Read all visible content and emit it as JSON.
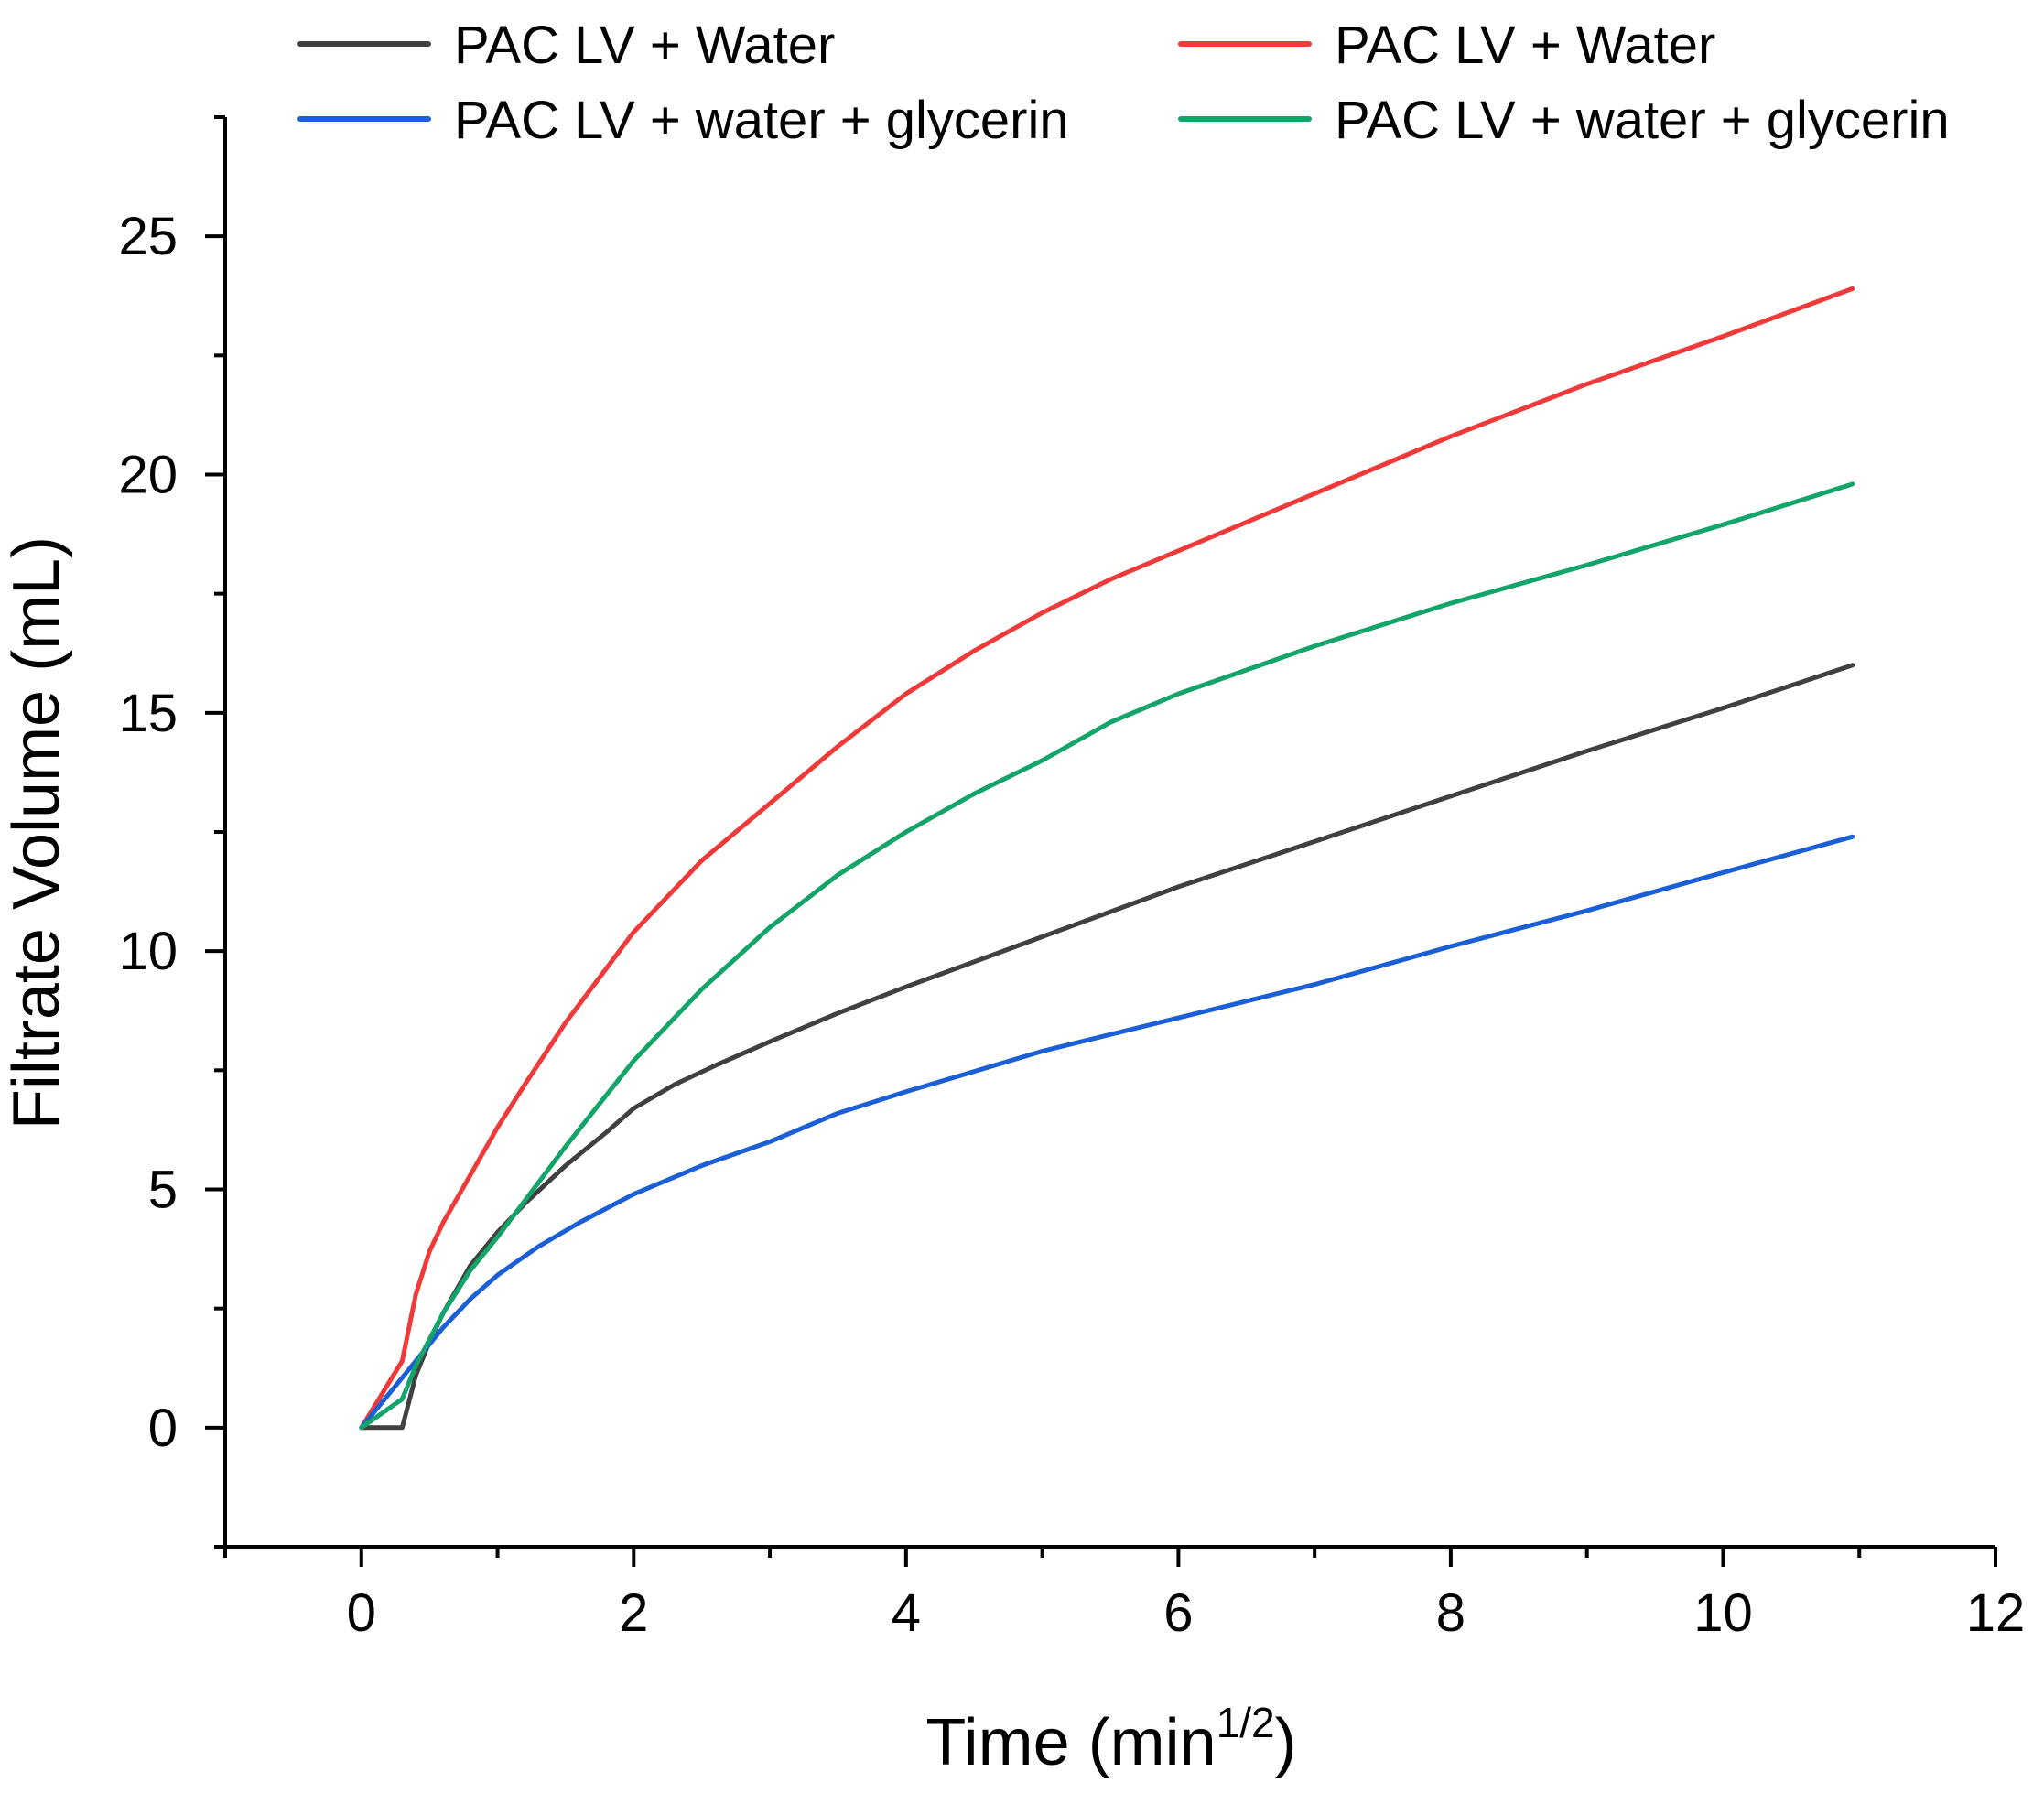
{
  "chart_data": {
    "type": "line",
    "title": "",
    "xlabel": "Time (min",
    "xlabel_sup": "1/2",
    "xlabel_close": ")",
    "ylabel": "Filtrate Volume (mL)",
    "xlim": [
      -1,
      12
    ],
    "ylim": [
      -2.5,
      27.5
    ],
    "xticks": [
      0,
      2,
      4,
      6,
      8,
      10,
      12
    ],
    "yticks": [
      0,
      5,
      10,
      15,
      20,
      25
    ],
    "x_minor_step": 1,
    "y_minor_step": 2.5,
    "grid": false,
    "legend_position": "top",
    "series": [
      {
        "name": "PAC LV + Water",
        "color": "#404040",
        "x": [
          0,
          0.3,
          0.4,
          0.5,
          0.6,
          0.7,
          0.8,
          1.0,
          1.2,
          1.5,
          1.8,
          2.0,
          2.3,
          2.6,
          3.0,
          3.5,
          4.0,
          5.0,
          6.0,
          7.0,
          8.0,
          9.0,
          10.0,
          10.95
        ],
        "y": [
          0,
          0,
          1.1,
          1.8,
          2.4,
          2.9,
          3.4,
          4.1,
          4.7,
          5.5,
          6.2,
          6.7,
          7.2,
          7.6,
          8.1,
          8.7,
          9.25,
          10.3,
          11.35,
          12.3,
          13.25,
          14.2,
          15.1,
          16.0
        ]
      },
      {
        "name": "PAC LV + Water",
        "color": "#f03a3a",
        "x": [
          0,
          0.3,
          0.4,
          0.5,
          0.6,
          0.8,
          1.0,
          1.2,
          1.5,
          2.0,
          2.5,
          3.0,
          3.5,
          4.0,
          4.5,
          5.0,
          5.5,
          6.0,
          7.0,
          8.0,
          9.0,
          10.0,
          10.95
        ],
        "y": [
          0,
          1.4,
          2.8,
          3.7,
          4.3,
          5.3,
          6.3,
          7.2,
          8.5,
          10.4,
          11.9,
          13.1,
          14.3,
          15.4,
          16.3,
          17.1,
          17.8,
          18.4,
          19.6,
          20.8,
          21.9,
          22.9,
          23.9
        ]
      },
      {
        "name": "PAC LV + water + glycerin",
        "color": "#1a5fd6",
        "x": [
          0,
          0.2,
          0.4,
          0.6,
          0.8,
          1.0,
          1.3,
          1.6,
          2.0,
          2.5,
          3.0,
          3.5,
          4.0,
          5.0,
          6.0,
          7.0,
          8.0,
          9.0,
          10.0,
          10.95
        ],
        "y": [
          0,
          0.7,
          1.4,
          2.1,
          2.7,
          3.2,
          3.8,
          4.3,
          4.9,
          5.5,
          6.0,
          6.6,
          7.05,
          7.9,
          8.6,
          9.3,
          10.1,
          10.85,
          11.65,
          12.4
        ]
      },
      {
        "name": "PAC LV + water + glycerin",
        "color": "#13a46a",
        "x": [
          0,
          0.3,
          0.4,
          0.6,
          0.8,
          1.0,
          1.5,
          2.0,
          2.5,
          3.0,
          3.5,
          4.0,
          4.5,
          5.0,
          5.5,
          6.0,
          6.5,
          7.0,
          8.0,
          9.0,
          10.0,
          10.95
        ],
        "y": [
          0,
          0.6,
          1.3,
          2.4,
          3.3,
          4.0,
          5.9,
          7.7,
          9.2,
          10.5,
          11.6,
          12.5,
          13.3,
          14.0,
          14.8,
          15.4,
          15.9,
          16.4,
          17.3,
          18.1,
          18.95,
          19.8
        ]
      }
    ]
  }
}
